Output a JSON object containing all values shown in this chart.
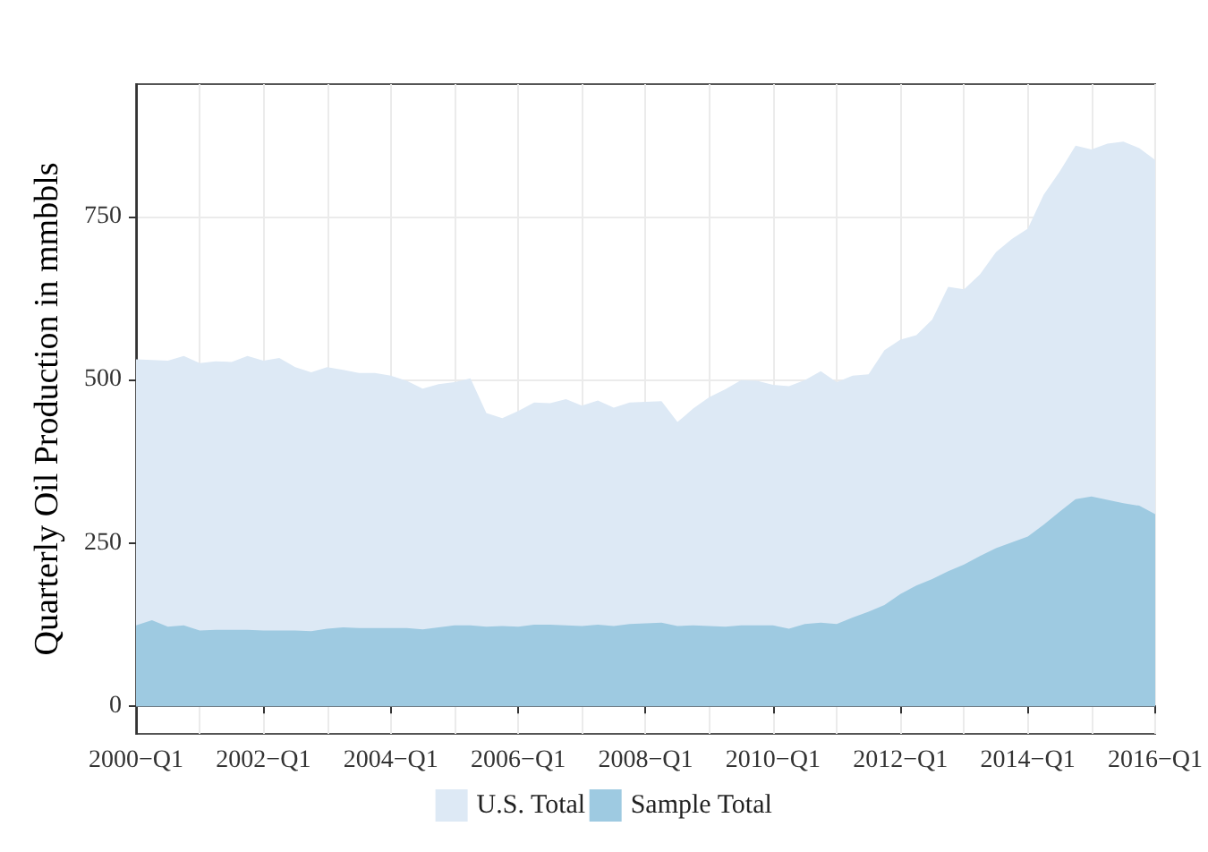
{
  "chart_data": {
    "type": "area",
    "ylabel": "Quarterly Oil Production in mmbbls",
    "categories": [
      "2000−Q1",
      null,
      null,
      null,
      null,
      null,
      null,
      null,
      "2002−Q1",
      null,
      null,
      null,
      null,
      null,
      null,
      null,
      "2004−Q1",
      null,
      null,
      null,
      null,
      null,
      null,
      null,
      "2006−Q1",
      null,
      null,
      null,
      null,
      null,
      null,
      null,
      "2008−Q1",
      null,
      null,
      null,
      null,
      null,
      null,
      null,
      "2010−Q1",
      null,
      null,
      null,
      null,
      null,
      null,
      null,
      "2012−Q1",
      null,
      null,
      null,
      null,
      null,
      null,
      null,
      "2014−Q1",
      null,
      null,
      null,
      null,
      null,
      null,
      null,
      "2016−Q1"
    ],
    "series": [
      {
        "name": "U.S. Total",
        "color": "#dde9f5",
        "values": [
          531,
          530,
          529,
          536,
          525,
          528,
          527,
          536,
          529,
          533,
          519,
          511,
          519,
          515,
          510,
          510,
          506,
          498,
          486,
          493,
          496,
          502,
          449,
          441,
          452,
          465,
          464,
          470,
          460,
          468,
          457,
          465,
          466,
          467,
          435,
          456,
          473,
          485,
          499,
          498,
          492,
          490,
          499,
          513,
          496,
          506,
          508,
          545,
          561,
          568,
          592,
          642,
          638,
          661,
          695,
          715,
          731,
          783,
          818,
          858,
          852,
          861,
          864,
          854,
          836
        ]
      },
      {
        "name": "Sample Total",
        "color": "#9ecae1",
        "values": [
          124,
          132,
          122,
          124,
          116,
          117,
          117,
          117,
          116,
          116,
          116,
          115,
          119,
          121,
          120,
          120,
          120,
          120,
          118,
          121,
          124,
          124,
          122,
          123,
          122,
          125,
          125,
          124,
          123,
          125,
          123,
          126,
          127,
          128,
          123,
          124,
          123,
          122,
          124,
          124,
          124,
          119,
          126,
          128,
          126,
          136,
          145,
          155,
          172,
          185,
          195,
          207,
          217,
          230,
          242,
          251,
          260,
          278,
          298,
          317,
          321,
          316,
          311,
          307,
          294
        ]
      }
    ],
    "ylim": [
      -42,
      952
    ],
    "yticks": [
      0,
      250,
      500,
      750
    ],
    "grid": true,
    "legend": "bottom"
  }
}
